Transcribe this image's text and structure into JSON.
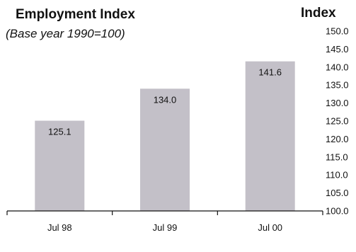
{
  "chart_data": {
    "type": "bar",
    "title": "Employment Index",
    "subtitle": "(Base year 1990=100)",
    "ylabel": "Index",
    "categories": [
      "Jul 98",
      "Jul 99",
      "Jul 00"
    ],
    "values": [
      125.1,
      134.0,
      141.6
    ],
    "value_labels": [
      "125.1",
      "134.0",
      "141.6"
    ],
    "ylim": [
      100,
      150
    ],
    "yticks": [
      "100.0",
      "105.0",
      "110.0",
      "115.0",
      "120.0",
      "125.0",
      "130.0",
      "135.0",
      "140.0",
      "145.0",
      "150.0"
    ],
    "y_axis_side": "right",
    "grid": false,
    "bar_color": "#c3c0c8"
  }
}
